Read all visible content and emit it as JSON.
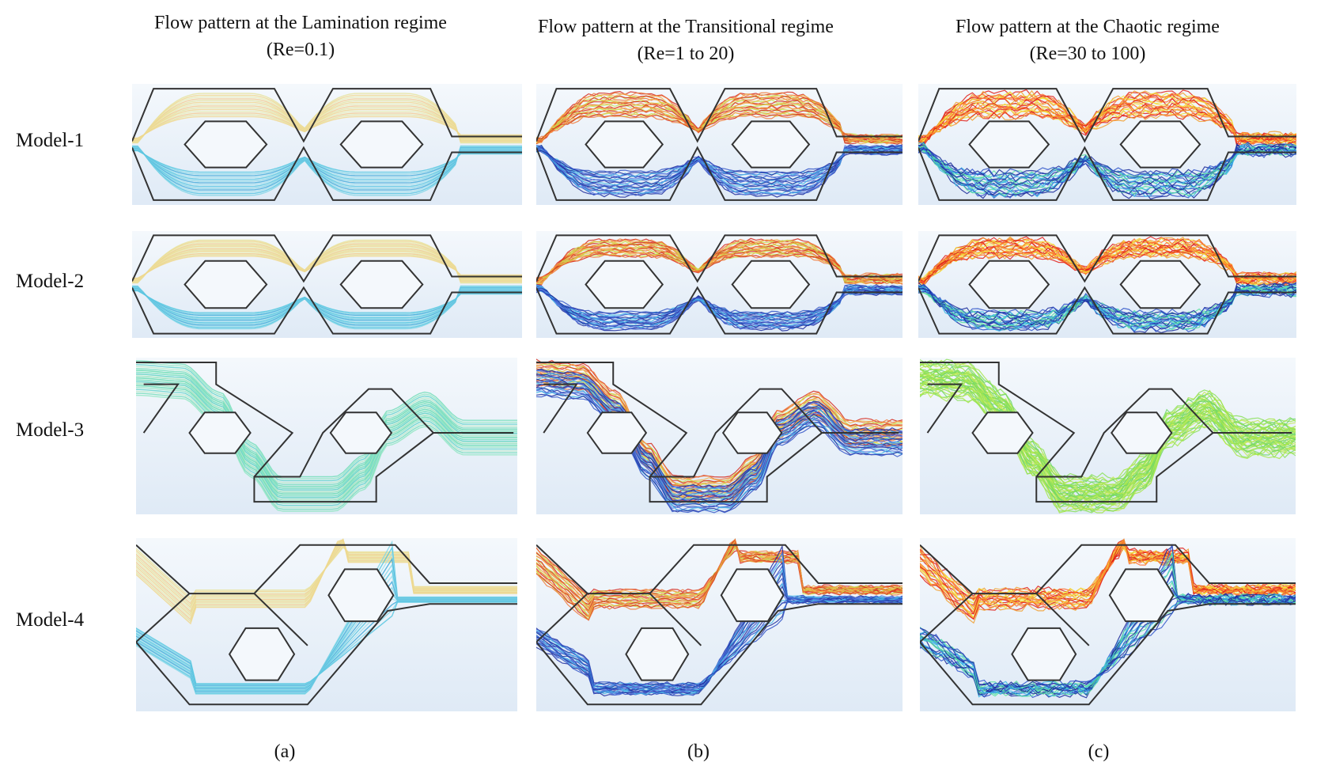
{
  "columns": [
    {
      "title": "Flow pattern at the Lamination regime",
      "subtitle": "(Re=0.1)",
      "caption": "(a)",
      "regime": "lamination"
    },
    {
      "title": "Flow pattern at the Transitional regime",
      "subtitle": "(Re=1 to 20)",
      "caption": "(b)",
      "regime": "transitional"
    },
    {
      "title": "Flow pattern at the Chaotic regime",
      "subtitle": "(Re=30 to 100)",
      "caption": "(c)",
      "regime": "chaotic"
    }
  ],
  "rows": [
    {
      "label": "Model-1",
      "geometry": "double-hexagon-symmetric"
    },
    {
      "label": "Model-2",
      "geometry": "double-hexagon-with-straight-link"
    },
    {
      "label": "Model-3",
      "geometry": "stepped-zigzag"
    },
    {
      "label": "Model-4",
      "geometry": "offset-hexagon"
    }
  ],
  "colors": {
    "panel_background_top": "#f4f8fc",
    "panel_background_bottom": "#dfeaf6",
    "wall": "#333333",
    "lamination_upper": [
      "#e6e29a",
      "#f0d68a",
      "#e9ecb0",
      "#f3c98a"
    ],
    "lamination_lower": [
      "#7fd6e6",
      "#4fc4e0",
      "#9fe0ec",
      "#3aa7d8"
    ],
    "transitional_upper": [
      "#d62a1c",
      "#f07a3a",
      "#f3b04a",
      "#c8e04a"
    ],
    "transitional_lower": [
      "#1f2d9c",
      "#3355c8",
      "#5a7de0",
      "#44b8e6"
    ],
    "chaotic_upper": [
      "#e0201a",
      "#f2a030",
      "#f4e23a",
      "#ff6a2a"
    ],
    "chaotic_lower": [
      "#1a2a9a",
      "#2f53c9",
      "#38b6e6",
      "#5ce0a0"
    ],
    "model3_lamination": [
      "#6fdcb8",
      "#8ee6c0",
      "#5cd2c8",
      "#b8e8c8"
    ],
    "model3_chaotic": [
      "#8be05a",
      "#a6e64a",
      "#6fd66a",
      "#c6ea5a"
    ]
  }
}
